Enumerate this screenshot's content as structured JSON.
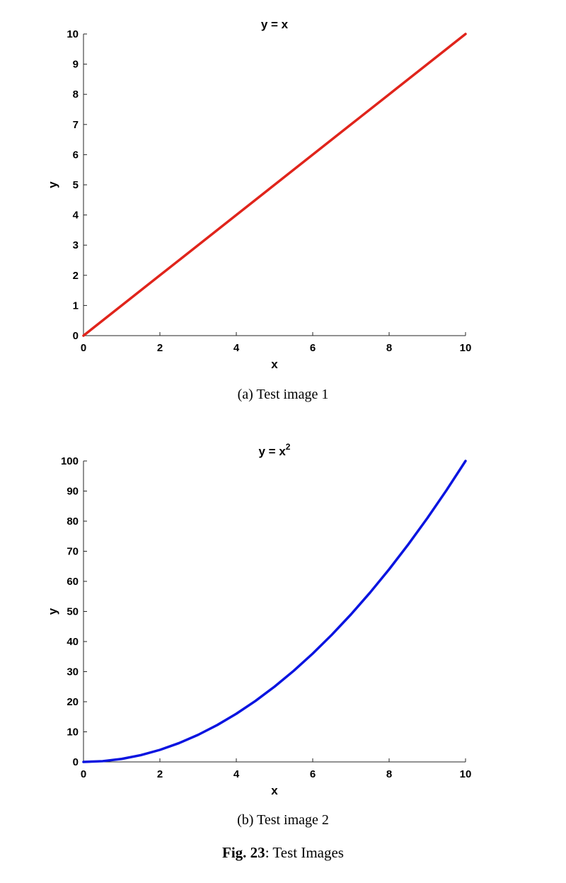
{
  "chart_data": [
    {
      "type": "line",
      "title": "y = x",
      "xlabel": "x",
      "ylabel": "y",
      "xlim": [
        0,
        10
      ],
      "ylim": [
        0,
        10
      ],
      "xticks": [
        0,
        2,
        4,
        6,
        8,
        10
      ],
      "yticks": [
        0,
        1,
        2,
        3,
        4,
        5,
        6,
        7,
        8,
        9,
        10
      ],
      "grid": false,
      "series": [
        {
          "color": "#e0241b",
          "x": [
            0,
            1,
            2,
            3,
            4,
            5,
            6,
            7,
            8,
            9,
            10
          ],
          "y": [
            0,
            1,
            2,
            3,
            4,
            5,
            6,
            7,
            8,
            9,
            10
          ]
        }
      ]
    },
    {
      "type": "line",
      "title_base": "y = x",
      "title_sup": "2",
      "xlabel": "x",
      "ylabel": "y",
      "xlim": [
        0,
        10
      ],
      "ylim": [
        0,
        100
      ],
      "xticks": [
        0,
        2,
        4,
        6,
        8,
        10
      ],
      "yticks": [
        0,
        10,
        20,
        30,
        40,
        50,
        60,
        70,
        80,
        90,
        100
      ],
      "grid": false,
      "series": [
        {
          "color": "#0a14e0",
          "x": [
            0,
            0.5,
            1,
            1.5,
            2,
            2.5,
            3,
            3.5,
            4,
            4.5,
            5,
            5.5,
            6,
            6.5,
            7,
            7.5,
            8,
            8.5,
            9,
            9.5,
            10
          ],
          "y": [
            0,
            0.25,
            1,
            2.25,
            4,
            6.25,
            9,
            12.25,
            16,
            20.25,
            25,
            30.25,
            36,
            42.25,
            49,
            56.25,
            64,
            72.25,
            81,
            90.25,
            100
          ]
        }
      ]
    }
  ],
  "captions": {
    "a": "(a) Test image 1",
    "b": "(b) Test image 2",
    "figure_label": "Fig. 23",
    "figure_text": ": Test Images"
  }
}
